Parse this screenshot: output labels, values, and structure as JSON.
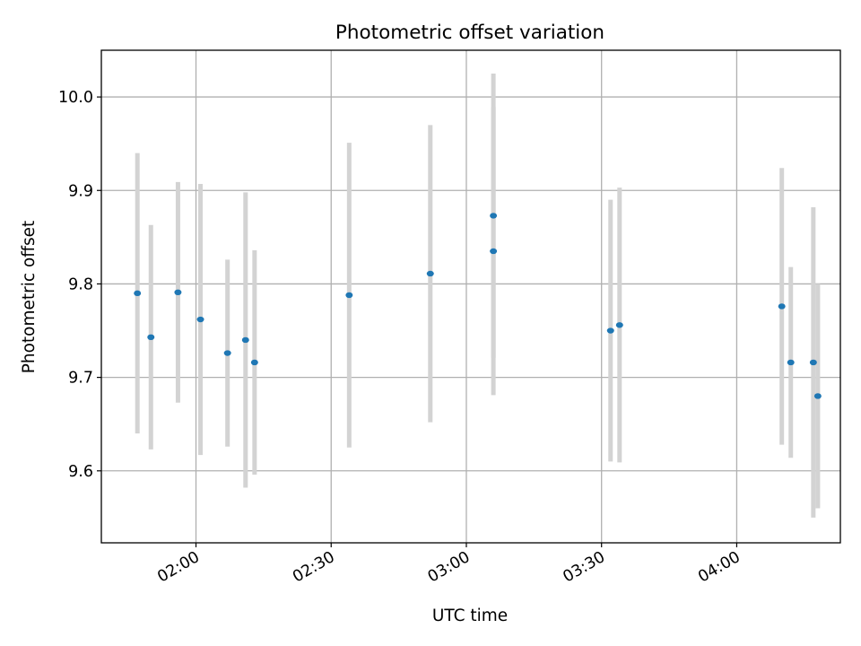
{
  "chart_data": {
    "type": "scatter",
    "title": "Photometric offset variation",
    "xlabel": "UTC time",
    "ylabel": "Photometric offset",
    "x_tick_labels": [
      "02:00",
      "02:30",
      "03:00",
      "03:30",
      "04:00"
    ],
    "x_ticks": [
      "02:00",
      "02:30",
      "03:00",
      "03:30",
      "04:00"
    ],
    "y_ticks": [
      9.6,
      9.7,
      9.8,
      9.9,
      10.0
    ],
    "y_tick_labels": [
      "9.6",
      "9.7",
      "9.8",
      "9.9",
      "10.0"
    ],
    "xlim": [
      "01:39",
      "04:23"
    ],
    "ylim": [
      9.523,
      10.05
    ],
    "grid": true,
    "colors": {
      "point": "#1f77b4",
      "error_bar": "#d3d3d3"
    },
    "points": [
      {
        "time": "01:47",
        "value": 9.79,
        "error": 0.15
      },
      {
        "time": "01:50",
        "value": 9.743,
        "error": 0.12
      },
      {
        "time": "01:56",
        "value": 9.791,
        "error": 0.118
      },
      {
        "time": "02:01",
        "value": 9.762,
        "error": 0.145
      },
      {
        "time": "02:07",
        "value": 9.726,
        "error": 0.1
      },
      {
        "time": "02:11",
        "value": 9.74,
        "error": 0.158
      },
      {
        "time": "02:13",
        "value": 9.716,
        "error": 0.12
      },
      {
        "time": "02:34",
        "value": 9.788,
        "error": 0.163
      },
      {
        "time": "02:52",
        "value": 9.811,
        "error": 0.159
      },
      {
        "time": "03:06",
        "value": 9.873,
        "error": 0.152
      },
      {
        "time": "03:06",
        "value": 9.835,
        "error": 0.154
      },
      {
        "time": "03:32",
        "value": 9.75,
        "error": 0.14
      },
      {
        "time": "03:34",
        "value": 9.756,
        "error": 0.147
      },
      {
        "time": "04:10",
        "value": 9.776,
        "error": 0.148
      },
      {
        "time": "04:12",
        "value": 9.716,
        "error": 0.102
      },
      {
        "time": "04:17",
        "value": 9.716,
        "error": 0.166
      },
      {
        "time": "04:18",
        "value": 9.68,
        "error": 0.12
      }
    ]
  }
}
